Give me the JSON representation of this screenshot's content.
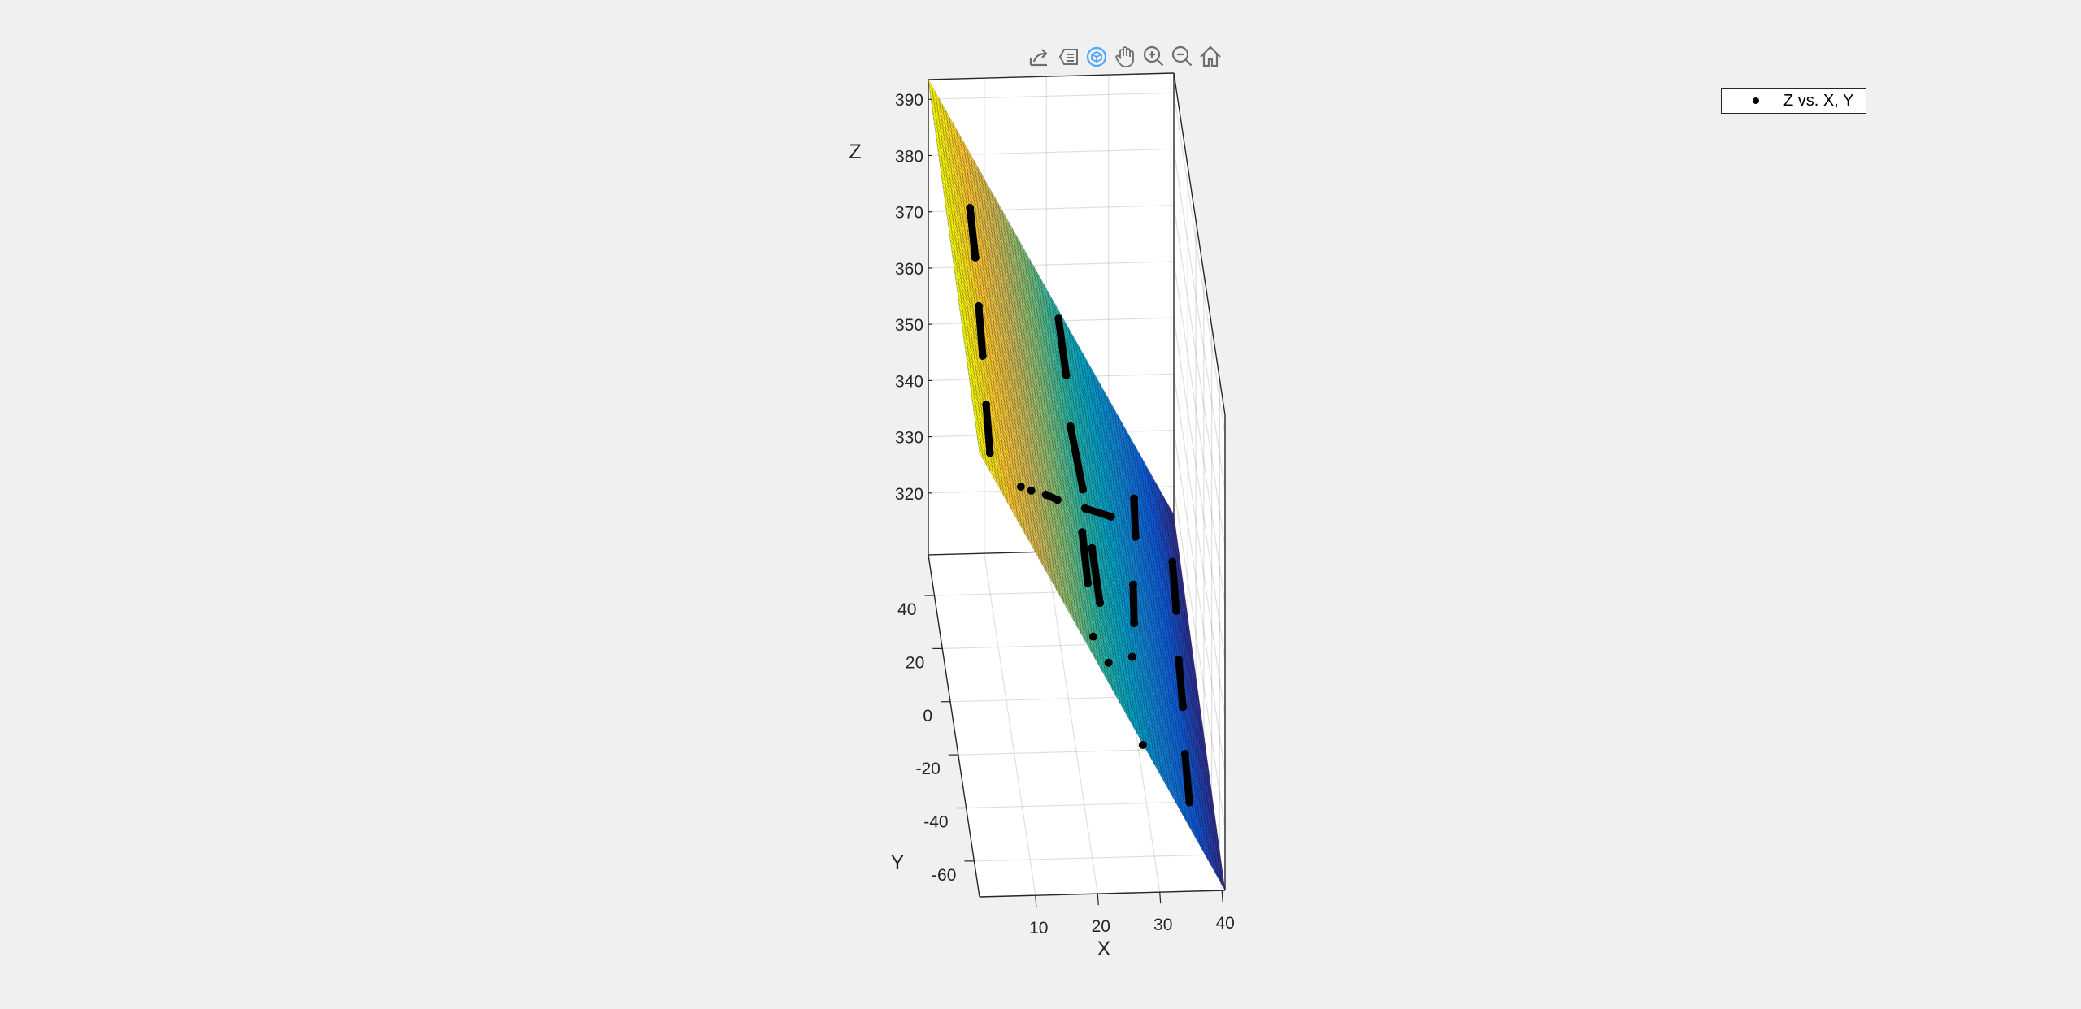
{
  "toolbar": {
    "buttons": [
      {
        "id": "export",
        "icon": "export-icon"
      },
      {
        "id": "datatip",
        "icon": "datatip-icon"
      },
      {
        "id": "rotate",
        "icon": "rotate-3d-icon"
      },
      {
        "id": "pan",
        "icon": "pan-hand-icon"
      },
      {
        "id": "zoom-in",
        "icon": "zoom-in-icon"
      },
      {
        "id": "zoom-out",
        "icon": "zoom-out-icon"
      },
      {
        "id": "restore-view",
        "icon": "home-icon"
      }
    ],
    "active": "rotate",
    "icon_color": "#6e6e6e",
    "active_color": "#4da6ff"
  },
  "legend": {
    "entries": [
      "Z vs. X, Y"
    ]
  },
  "chart_data": {
    "type": "scatter",
    "overlay": "surface",
    "title": "",
    "xlabel": "X",
    "ylabel": "Y",
    "zlabel": "Z",
    "xlim": [
      1,
      40.5
    ],
    "ylim": [
      -73.5,
      55.3
    ],
    "zlim": [
      309,
      393.5
    ],
    "xticks": [
      10,
      20,
      30,
      40
    ],
    "yticks": [
      -60,
      -40,
      -20,
      0,
      20,
      40
    ],
    "zticks": [
      320,
      330,
      340,
      350,
      360,
      370,
      380,
      390
    ],
    "grid": true,
    "legend_position": "top-right",
    "colormap": "parula",
    "colormap_stops": [
      "#352a87",
      "#0f5cdd",
      "#1481d6",
      "#06a4ca",
      "#2eb7a4",
      "#87bf77",
      "#d1bb59",
      "#fec832",
      "#f9fb0e"
    ],
    "surface": {
      "x": [
        1,
        40.5
      ],
      "y": [
        -73.5,
        55.3
      ],
      "z": [
        [
          388,
          309
        ],
        [
          393.5,
          315
        ]
      ]
    },
    "series": [
      {
        "name": "Z vs. X, Y",
        "marker": "dot",
        "color": "#000000",
        "clusters": [
          [
            [
              6.1,
              30.2,
              382.4
            ],
            [
              5.8,
              12.2,
              382.1
            ]
          ],
          [
            [
              5.1,
              -7.4,
              382.7
            ],
            [
              4.5,
              -26.7,
              383.0
            ]
          ],
          [
            [
              3.8,
              -46.3,
              383.6
            ],
            [
              3.2,
              -65.3,
              384.0
            ]
          ],
          [
            [
              21.7,
              51.5,
              352.2
            ],
            [
              21.7,
              32.1,
              351.3
            ]
          ],
          [
            [
              21.1,
              12.0,
              351.7
            ],
            [
              21.9,
              -6.7,
              349.3
            ]
          ],
          [
            [
              8.8,
              -55.5,
              373.2
            ]
          ],
          [
            [
              10.9,
              -48.8,
              369.3
            ]
          ],
          [
            [
              13.9,
              -38.9,
              363.8
            ],
            [
              16.2,
              -31.9,
              359.5
            ]
          ],
          [
            [
              21.8,
              -13.6,
              349.2
            ],
            [
              27.1,
              3.7,
              339.4
            ]
          ],
          [
            [
              32.5,
              30.3,
              329.9
            ],
            [
              31.7,
              14.2,
              330.7
            ]
          ],
          [
            [
              20.5,
              -27.0,
              351.3
            ],
            [
              20.2,
              -45.7,
              351.1
            ]
          ],
          [
            [
              22.1,
              -26.5,
              348.2
            ],
            [
              22.2,
              -44.8,
              347.1
            ]
          ],
          [
            [
              38.8,
              32.3,
              317.5
            ],
            [
              38.2,
              13.3,
              317.8
            ]
          ],
          [
            [
              29.8,
              -9.6,
              333.5
            ],
            [
              28.9,
              -26.4,
              334.6
            ]
          ],
          [
            [
              19.8,
              -65.6,
              351.0
            ]
          ],
          [
            [
              22.3,
              -65.0,
              346.0
            ]
          ],
          [
            [
              27.5,
              -43.0,
              336.5
            ]
          ],
          [
            [
              37.3,
              -7.0,
              318.7
            ],
            [
              36.8,
              -25.2,
              318.9
            ]
          ],
          [
            [
              27.3,
              -73.0,
              335.0
            ]
          ],
          [
            [
              35.9,
              -44.7,
              319.8
            ],
            [
              35.4,
              -63.7,
              320.2
            ]
          ]
        ]
      }
    ]
  }
}
